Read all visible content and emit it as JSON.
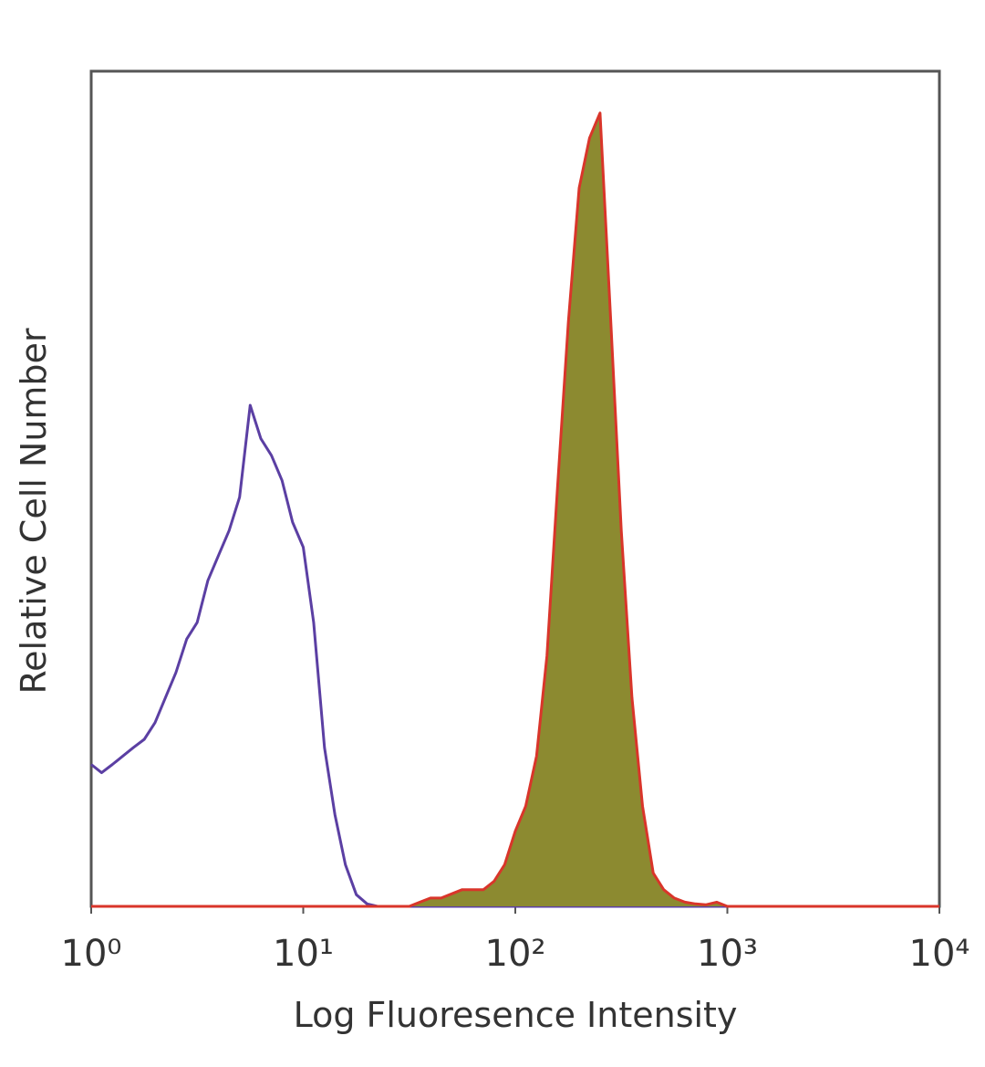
{
  "chart_data": {
    "type": "line",
    "xlabel": "Log Fluoresence Intensity",
    "ylabel": "Relative Cell Number",
    "xscale": "log",
    "xlim": [
      1,
      10000
    ],
    "xticks": [
      {
        "value": 1,
        "label": "10⁰"
      },
      {
        "value": 10,
        "label": "10¹"
      },
      {
        "value": 100,
        "label": "10²"
      },
      {
        "value": 1000,
        "label": "10³"
      },
      {
        "value": 10000,
        "label": "10⁴"
      }
    ],
    "ylim": [
      0,
      100
    ],
    "x": [
      1,
      1.12,
      1.26,
      1.41,
      1.58,
      1.78,
      2.0,
      2.24,
      2.51,
      2.82,
      3.16,
      3.55,
      3.98,
      4.47,
      5.01,
      5.62,
      6.31,
      7.08,
      7.94,
      8.91,
      10,
      11.2,
      12.6,
      14.1,
      15.8,
      17.8,
      20.0,
      22.4,
      25.1,
      28.2,
      31.6,
      35.5,
      39.8,
      44.7,
      50.1,
      56.2,
      63.1,
      70.8,
      79.4,
      89.1,
      100,
      112,
      126,
      141,
      158,
      178,
      200,
      224,
      251,
      282,
      316,
      355,
      398,
      447,
      501,
      562,
      631,
      708,
      794,
      891,
      1000,
      3162,
      10000
    ],
    "series": [
      {
        "color": "#5b3fa3",
        "values": [
          17,
          16,
          17,
          18,
          19,
          20,
          22,
          25,
          28,
          32,
          34,
          39,
          42,
          45,
          49,
          60,
          56,
          54,
          51,
          46,
          43,
          34,
          19,
          11,
          5,
          1.4,
          0.3,
          0,
          0,
          0,
          0,
          0,
          0,
          0,
          0,
          0,
          0,
          0,
          0,
          0,
          0,
          0,
          0,
          0,
          0,
          0,
          0,
          0,
          0,
          0,
          0,
          0,
          0,
          0,
          0,
          0,
          0,
          0,
          0,
          0,
          0,
          0,
          0
        ]
      },
      {
        "color": "#d9352a",
        "fill": "#8c8a30",
        "values": [
          0,
          0,
          0,
          0,
          0,
          0,
          0,
          0,
          0,
          0,
          0,
          0,
          0,
          0,
          0,
          0,
          0,
          0,
          0,
          0,
          0,
          0,
          0,
          0,
          0,
          0,
          0,
          0,
          0,
          0,
          0,
          0.5,
          1,
          1,
          1.5,
          2,
          2,
          2,
          3,
          5,
          9,
          12,
          18,
          30,
          50,
          70,
          86,
          92,
          95,
          70,
          45,
          25,
          12,
          4,
          2,
          1,
          0.5,
          0.3,
          0.2,
          0.5,
          0,
          0,
          0
        ]
      }
    ]
  }
}
